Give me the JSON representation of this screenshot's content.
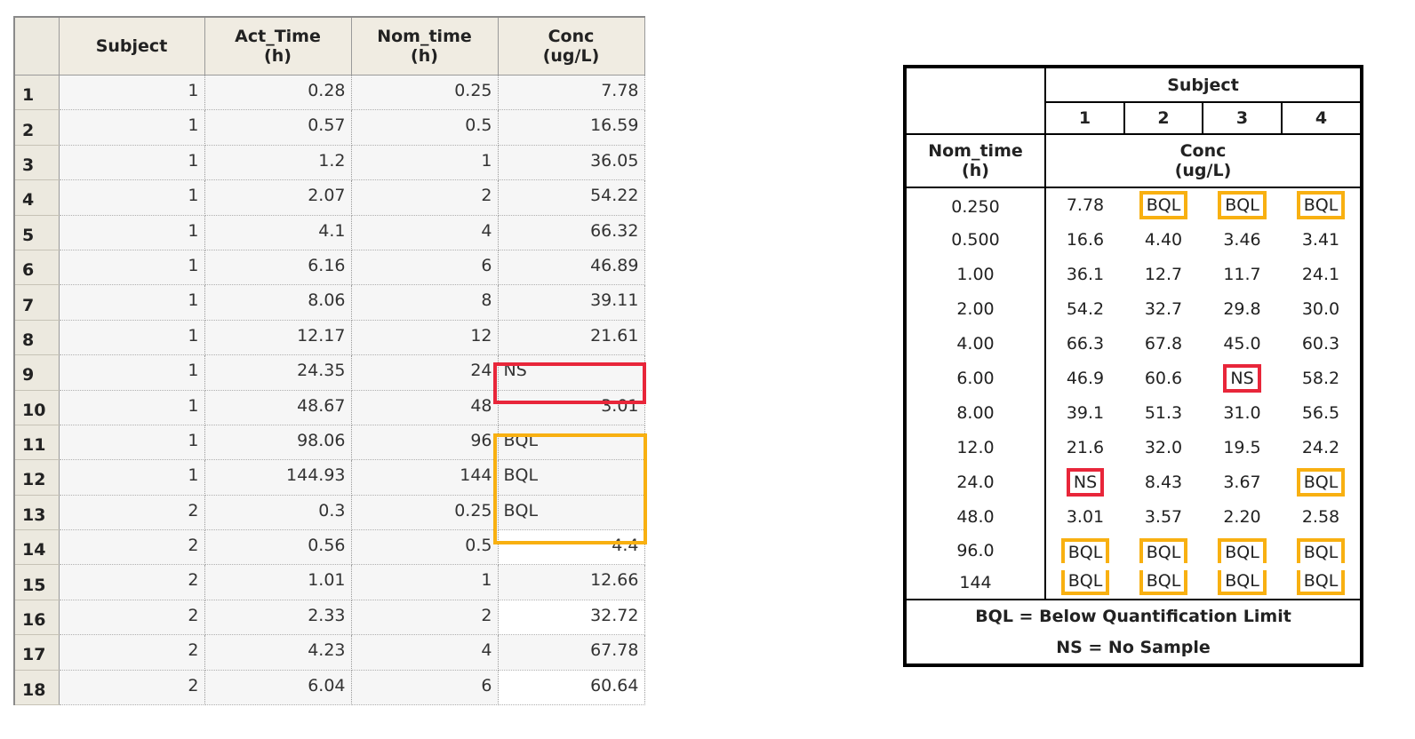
{
  "grid": {
    "columns": [
      "Subject",
      "Act_Time\n(h)",
      "Nom_time\n(h)",
      "Conc\n(ug/L)"
    ],
    "rows": [
      {
        "n": "1",
        "subject": "1",
        "act": "0.28",
        "nom": "0.25",
        "conc": "7.78"
      },
      {
        "n": "2",
        "subject": "1",
        "act": "0.57",
        "nom": "0.5",
        "conc": "16.59"
      },
      {
        "n": "3",
        "subject": "1",
        "act": "1.2",
        "nom": "1",
        "conc": "36.05"
      },
      {
        "n": "4",
        "subject": "1",
        "act": "2.07",
        "nom": "2",
        "conc": "54.22"
      },
      {
        "n": "5",
        "subject": "1",
        "act": "4.1",
        "nom": "4",
        "conc": "66.32"
      },
      {
        "n": "6",
        "subject": "1",
        "act": "6.16",
        "nom": "6",
        "conc": "46.89"
      },
      {
        "n": "7",
        "subject": "1",
        "act": "8.06",
        "nom": "8",
        "conc": "39.11"
      },
      {
        "n": "8",
        "subject": "1",
        "act": "12.17",
        "nom": "12",
        "conc": "21.61"
      },
      {
        "n": "9",
        "subject": "1",
        "act": "24.35",
        "nom": "24",
        "conc": "NS"
      },
      {
        "n": "10",
        "subject": "1",
        "act": "48.67",
        "nom": "48",
        "conc": "3.01"
      },
      {
        "n": "11",
        "subject": "1",
        "act": "98.06",
        "nom": "96",
        "conc": "BQL"
      },
      {
        "n": "12",
        "subject": "1",
        "act": "144.93",
        "nom": "144",
        "conc": "BQL"
      },
      {
        "n": "13",
        "subject": "2",
        "act": "0.3",
        "nom": "0.25",
        "conc": "BQL"
      },
      {
        "n": "14",
        "subject": "2",
        "act": "0.56",
        "nom": "0.5",
        "conc": "4.4"
      },
      {
        "n": "15",
        "subject": "2",
        "act": "1.01",
        "nom": "1",
        "conc": "12.66"
      },
      {
        "n": "16",
        "subject": "2",
        "act": "2.33",
        "nom": "2",
        "conc": "32.72"
      },
      {
        "n": "17",
        "subject": "2",
        "act": "4.23",
        "nom": "4",
        "conc": "67.78"
      },
      {
        "n": "18",
        "subject": "2",
        "act": "6.04",
        "nom": "6",
        "conc": "60.64"
      }
    ]
  },
  "summary": {
    "subject_header": "Subject",
    "subjects": [
      "1",
      "2",
      "3",
      "4"
    ],
    "nom_header": "Nom_time\n(h)",
    "conc_header": "Conc\n(ug/L)",
    "rows": [
      {
        "t": "0.250",
        "v": [
          "7.78",
          "BQL",
          "BQL",
          "BQL"
        ]
      },
      {
        "t": "0.500",
        "v": [
          "16.6",
          "4.40",
          "3.46",
          "3.41"
        ]
      },
      {
        "t": "1.00",
        "v": [
          "36.1",
          "12.7",
          "11.7",
          "24.1"
        ]
      },
      {
        "t": "2.00",
        "v": [
          "54.2",
          "32.7",
          "29.8",
          "30.0"
        ]
      },
      {
        "t": "4.00",
        "v": [
          "66.3",
          "67.8",
          "45.0",
          "60.3"
        ]
      },
      {
        "t": "6.00",
        "v": [
          "46.9",
          "60.6",
          "NS",
          "58.2"
        ]
      },
      {
        "t": "8.00",
        "v": [
          "39.1",
          "51.3",
          "31.0",
          "56.5"
        ]
      },
      {
        "t": "12.0",
        "v": [
          "21.6",
          "32.0",
          "19.5",
          "24.2"
        ]
      },
      {
        "t": "24.0",
        "v": [
          "NS",
          "8.43",
          "3.67",
          "BQL"
        ]
      },
      {
        "t": "48.0",
        "v": [
          "3.01",
          "3.57",
          "2.20",
          "2.58"
        ]
      },
      {
        "t": "96.0",
        "v": [
          "BQL",
          "BQL",
          "BQL",
          "BQL"
        ]
      },
      {
        "t": "144",
        "v": [
          "BQL",
          "BQL",
          "BQL",
          "BQL"
        ]
      }
    ],
    "legend_bql": "BQL = Below Quantification Limit",
    "legend_ns": "NS = No Sample"
  },
  "colors": {
    "ns_highlight": "#e8263a",
    "bql_highlight": "#f8b011"
  }
}
